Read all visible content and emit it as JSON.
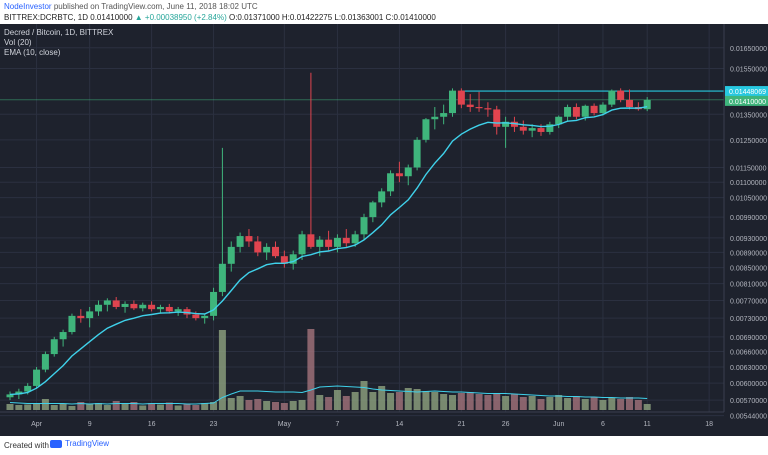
{
  "header": {
    "author": "NodeInvestor",
    "published": " published on TradingView.com, June 11, 2018 18:02 UTC",
    "symbol": "BITTREX:DCRBTC, 1D",
    "last": "0.01410000",
    "change": "▲ +0.00038950 (+2.84%)",
    "ohlc": "O:0.01371000 H:0.01422275 L:0.01363001 C:0.01410000"
  },
  "legend": {
    "title": "Decred / Bitcoin, 1D, BITTREX",
    "vol": "Vol (20)",
    "ema": "EMA (10, close)"
  },
  "footer": {
    "created": "Created with",
    "brand": "TradingView"
  },
  "colors": {
    "up": "#3fb57c",
    "down": "#e0444f",
    "ema": "#3fd1ea",
    "hline": "#27c8e0",
    "grid": "#2b3040",
    "bg": "#1e222d",
    "vol_up": "#8ea47f",
    "vol_down": "#a4747c"
  },
  "chart_data": {
    "type": "candlestick",
    "pair": "DCR/BTC",
    "ylim": [
      0.0055,
      0.0172
    ],
    "y_ticks": [
      "0.01650000",
      "0.01550000",
      "0.01350000",
      "0.01250000",
      "0.01150000",
      "0.01100000",
      "0.01050000",
      "0.00990000",
      "0.00930000",
      "0.00890000",
      "0.00850000",
      "0.00810000",
      "0.00770000",
      "0.00730000",
      "0.00690000",
      "0.00660000",
      "0.00630000",
      "0.00600000",
      "0.00570000",
      "0.00544000"
    ],
    "x_ticks": [
      {
        "label": "Apr",
        "day": 3
      },
      {
        "label": "9",
        "day": 9
      },
      {
        "label": "16",
        "day": 16
      },
      {
        "label": "23",
        "day": 23
      },
      {
        "label": "May",
        "day": 31
      },
      {
        "label": "7",
        "day": 37
      },
      {
        "label": "14",
        "day": 44
      },
      {
        "label": "21",
        "day": 51
      },
      {
        "label": "26",
        "day": 56
      },
      {
        "label": "Jun",
        "day": 62
      },
      {
        "label": "6",
        "day": 67
      },
      {
        "label": "11",
        "day": 72
      },
      {
        "label": "18",
        "day": 79
      }
    ],
    "horizontal_line": 0.01448069,
    "labels": {
      "resistance": "0.01448069",
      "last": "0.01410000"
    },
    "last_price": 0.0141,
    "candles": [
      [
        0.00575,
        0.00585,
        0.0057,
        0.0058
      ],
      [
        0.0058,
        0.0059,
        0.00572,
        0.00585
      ],
      [
        0.00585,
        0.006,
        0.0058,
        0.00595
      ],
      [
        0.00595,
        0.0063,
        0.0059,
        0.00625
      ],
      [
        0.00625,
        0.0066,
        0.0062,
        0.00655
      ],
      [
        0.00655,
        0.0069,
        0.0065,
        0.00685
      ],
      [
        0.00685,
        0.00705,
        0.0067,
        0.007
      ],
      [
        0.007,
        0.0074,
        0.00695,
        0.00735
      ],
      [
        0.00735,
        0.0075,
        0.0072,
        0.0073
      ],
      [
        0.0073,
        0.00755,
        0.0071,
        0.00745
      ],
      [
        0.00745,
        0.0077,
        0.00735,
        0.0076
      ],
      [
        0.0076,
        0.00775,
        0.00745,
        0.0077
      ],
      [
        0.0077,
        0.00778,
        0.0075,
        0.00755
      ],
      [
        0.00755,
        0.00768,
        0.00742,
        0.00762
      ],
      [
        0.00762,
        0.0077,
        0.00748,
        0.00752
      ],
      [
        0.00752,
        0.00765,
        0.00745,
        0.0076
      ],
      [
        0.0076,
        0.00768,
        0.00745,
        0.0075
      ],
      [
        0.0075,
        0.0076,
        0.0074,
        0.00755
      ],
      [
        0.00755,
        0.00762,
        0.0074,
        0.00745
      ],
      [
        0.00745,
        0.00755,
        0.00735,
        0.0075
      ],
      [
        0.0075,
        0.00755,
        0.0073,
        0.00738
      ],
      [
        0.00738,
        0.00745,
        0.00725,
        0.0073
      ],
      [
        0.0073,
        0.0074,
        0.00718,
        0.00735
      ],
      [
        0.00735,
        0.008,
        0.00725,
        0.0079
      ],
      [
        0.0079,
        0.0122,
        0.0078,
        0.0086
      ],
      [
        0.0086,
        0.0092,
        0.0084,
        0.00905
      ],
      [
        0.00905,
        0.00945,
        0.0089,
        0.00935
      ],
      [
        0.00935,
        0.00955,
        0.00905,
        0.0092
      ],
      [
        0.0092,
        0.00935,
        0.0088,
        0.0089
      ],
      [
        0.0089,
        0.00915,
        0.0087,
        0.00905
      ],
      [
        0.00905,
        0.0092,
        0.00875,
        0.0088
      ],
      [
        0.0088,
        0.00895,
        0.0085,
        0.0086
      ],
      [
        0.0086,
        0.00895,
        0.00845,
        0.00885
      ],
      [
        0.00885,
        0.0095,
        0.0087,
        0.0094
      ],
      [
        0.0094,
        0.0153,
        0.009,
        0.00905
      ],
      [
        0.00905,
        0.00935,
        0.0088,
        0.00925
      ],
      [
        0.00925,
        0.0095,
        0.00895,
        0.00905
      ],
      [
        0.00905,
        0.0094,
        0.0089,
        0.0093
      ],
      [
        0.0093,
        0.00955,
        0.00905,
        0.00915
      ],
      [
        0.00915,
        0.0095,
        0.00905,
        0.0094
      ],
      [
        0.0094,
        0.01,
        0.00925,
        0.0099
      ],
      [
        0.0099,
        0.0104,
        0.00975,
        0.01035
      ],
      [
        0.01035,
        0.0108,
        0.0102,
        0.0107
      ],
      [
        0.0107,
        0.0114,
        0.01055,
        0.0113
      ],
      [
        0.0113,
        0.0117,
        0.011,
        0.0112
      ],
      [
        0.0112,
        0.0116,
        0.0109,
        0.0115
      ],
      [
        0.0115,
        0.0126,
        0.0114,
        0.0125
      ],
      [
        0.0125,
        0.01335,
        0.0124,
        0.0133
      ],
      [
        0.0133,
        0.0138,
        0.0129,
        0.0134
      ],
      [
        0.0134,
        0.0139,
        0.0131,
        0.01355
      ],
      [
        0.01355,
        0.0146,
        0.0134,
        0.0145
      ],
      [
        0.0145,
        0.0146,
        0.01375,
        0.0139
      ],
      [
        0.0139,
        0.01435,
        0.0136,
        0.0138
      ],
      [
        0.0138,
        0.01445,
        0.0136,
        0.01375
      ],
      [
        0.01375,
        0.014,
        0.0134,
        0.0137
      ],
      [
        0.0137,
        0.01385,
        0.0127,
        0.013
      ],
      [
        0.013,
        0.0134,
        0.0122,
        0.0132
      ],
      [
        0.0132,
        0.0134,
        0.0128,
        0.013
      ],
      [
        0.013,
        0.01325,
        0.0127,
        0.01285
      ],
      [
        0.01285,
        0.0131,
        0.0126,
        0.01295
      ],
      [
        0.01295,
        0.0131,
        0.01265,
        0.0128
      ],
      [
        0.0128,
        0.0132,
        0.0127,
        0.0131
      ],
      [
        0.0131,
        0.01345,
        0.01295,
        0.0134
      ],
      [
        0.0134,
        0.0139,
        0.0132,
        0.0138
      ],
      [
        0.0138,
        0.01395,
        0.0133,
        0.0134
      ],
      [
        0.0134,
        0.0139,
        0.01325,
        0.01385
      ],
      [
        0.01385,
        0.01395,
        0.01345,
        0.01355
      ],
      [
        0.01355,
        0.014,
        0.01345,
        0.0139
      ],
      [
        0.0139,
        0.01455,
        0.0138,
        0.0145
      ],
      [
        0.0145,
        0.0146,
        0.014,
        0.0141
      ],
      [
        0.0141,
        0.01455,
        0.0137,
        0.0138
      ],
      [
        0.0138,
        0.014,
        0.01365,
        0.01371
      ],
      [
        0.01371,
        0.01422,
        0.01363,
        0.0141
      ]
    ],
    "volume": [
      12,
      10,
      11,
      14,
      22,
      10,
      13,
      8,
      16,
      12,
      14,
      10,
      18,
      12,
      16,
      9,
      14,
      11,
      15,
      9,
      12,
      10,
      14,
      16,
      160,
      24,
      28,
      20,
      22,
      18,
      16,
      14,
      18,
      20,
      162,
      30,
      26,
      40,
      28,
      36,
      58,
      36,
      48,
      34,
      36,
      44,
      42,
      38,
      36,
      32,
      30,
      34,
      36,
      32,
      30,
      34,
      28,
      32,
      26,
      28,
      22,
      26,
      30,
      24,
      28,
      22,
      26,
      20,
      24,
      22,
      26,
      20,
      12
    ],
    "vol_ma": [
      15,
      14,
      13,
      13,
      13,
      13,
      13,
      12,
      13,
      12,
      13,
      12,
      13,
      13,
      13,
      12,
      13,
      13,
      13,
      13,
      12,
      12,
      13,
      14,
      25,
      32,
      38,
      38,
      38,
      37,
      36,
      36,
      36,
      35,
      40,
      46,
      47,
      48,
      47,
      46,
      45,
      42,
      40,
      39,
      38,
      37,
      36,
      37,
      38,
      37,
      36,
      36,
      35,
      34,
      33,
      33,
      33,
      32,
      31,
      30,
      29,
      28,
      28,
      27,
      27,
      26,
      26,
      25,
      25,
      24,
      24,
      24,
      23
    ]
  }
}
